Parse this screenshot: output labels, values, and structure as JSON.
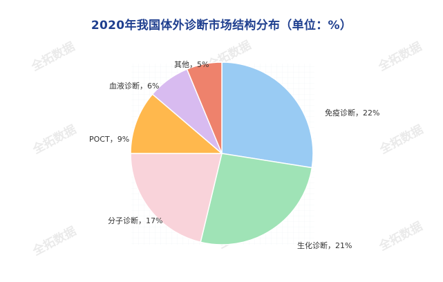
{
  "watermark": {
    "text": "全拓数据"
  },
  "chart_data": {
    "type": "pie",
    "title": "2020年我国体外诊断市场结构分布（单位：%）",
    "unit": "%",
    "grid": true,
    "legend": "none",
    "slices": [
      {
        "name": "免疫诊断",
        "value": 22,
        "label": "免疫诊断，22%",
        "color": "#99cbf3"
      },
      {
        "name": "生化诊断",
        "value": 21,
        "label": "生化诊断，21%",
        "color": "#9fe3b6"
      },
      {
        "name": "分子诊断",
        "value": 17,
        "label": "分子诊断，17%",
        "color": "#f9d3da"
      },
      {
        "name": "POCT",
        "value": 9,
        "label": "POCT，9%",
        "color": "#ffb84d"
      },
      {
        "name": "血液诊断",
        "value": 6,
        "label": "血液诊断，6%",
        "color": "#d8bbf0"
      },
      {
        "name": "其他",
        "value": 5,
        "label": "其他，5%",
        "color": "#ee826c"
      }
    ]
  }
}
